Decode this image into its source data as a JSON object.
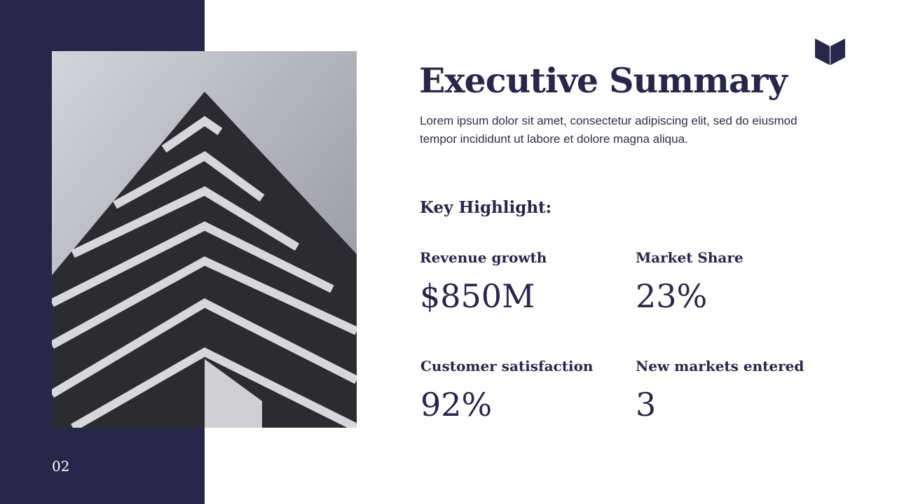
{
  "slide": {
    "page_number": "02",
    "title": "Executive Summary",
    "description": "Lorem ipsum dolor sit amet, consectetur adipiscing elit, sed do eiusmod tempor incididunt ut labore et dolore magna aliqua.",
    "key_heading": "Key Highlight:",
    "stats": [
      {
        "label": "Revenue growth",
        "value": "$850M"
      },
      {
        "label": "Market Share",
        "value": "23%"
      },
      {
        "label": "Customer satisfaction",
        "value": "92%"
      },
      {
        "label": "New markets entered",
        "value": "3"
      }
    ],
    "logo_icon": "open-book-icon",
    "colors": {
      "navy": "#28274a",
      "background": "#ffffff"
    }
  }
}
